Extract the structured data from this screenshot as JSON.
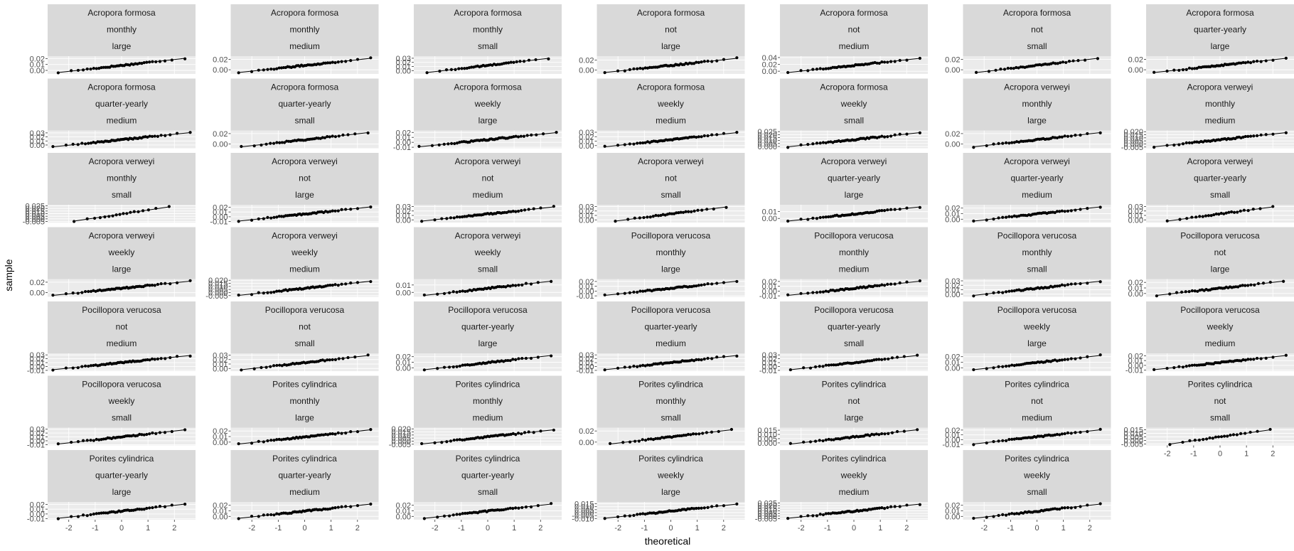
{
  "chart_data": {
    "type": "scatter",
    "subtype": "qq-plot-facet-grid",
    "title": "",
    "xlabel": "theoretical",
    "ylabel": "sample",
    "grid": true,
    "legend": "none",
    "colors": {
      "strip_bg": "#d9d9d9",
      "panel_bg": "#ebebeb",
      "grid": "#ffffff",
      "point": "#000000",
      "line": "#000000",
      "tick_text": "#4d4d4d"
    },
    "x_ticks": [
      "-2",
      "-1",
      "0",
      "1",
      "2"
    ],
    "xlim": [
      -2.8,
      2.8
    ],
    "columns": 7,
    "panels": [
      {
        "strip": [
          "Acropora formosa",
          "monthly",
          "large"
        ],
        "y_ticks": [
          "0.00",
          "0.01",
          "0.02"
        ],
        "ylim": [
          -0.006,
          0.024
        ],
        "x_range": [
          -2.4,
          2.4
        ],
        "n": 40
      },
      {
        "strip": [
          "Acropora formosa",
          "monthly",
          "medium"
        ],
        "y_ticks": [
          "0.00",
          "0.02"
        ],
        "ylim": [
          -0.008,
          0.026
        ],
        "x_range": [
          -2.5,
          2.5
        ],
        "n": 45
      },
      {
        "strip": [
          "Acropora formosa",
          "monthly",
          "small"
        ],
        "y_ticks": [
          "0.00",
          "0.01",
          "0.02",
          "0.03"
        ],
        "ylim": [
          -0.008,
          0.035
        ],
        "x_range": [
          -2.3,
          2.3
        ],
        "n": 38
      },
      {
        "strip": [
          "Acropora formosa",
          "not",
          "large"
        ],
        "y_ticks": [
          "0.00",
          "0.02"
        ],
        "ylim": [
          -0.008,
          0.028
        ],
        "x_range": [
          -2.5,
          2.5
        ],
        "n": 45
      },
      {
        "strip": [
          "Acropora formosa",
          "not",
          "medium"
        ],
        "y_ticks": [
          "0.00",
          "0.02",
          "0.04"
        ],
        "ylim": [
          -0.008,
          0.044
        ],
        "x_range": [
          -2.5,
          2.5
        ],
        "n": 45
      },
      {
        "strip": [
          "Acropora formosa",
          "not",
          "small"
        ],
        "y_ticks": [
          "0.00",
          "0.02"
        ],
        "ylim": [
          -0.008,
          0.026
        ],
        "x_range": [
          -2.3,
          2.3
        ],
        "n": 38
      },
      {
        "strip": [
          "Acropora formosa",
          "quarter-yearly",
          "large"
        ],
        "y_ticks": [
          "0.00",
          "0.02"
        ],
        "ylim": [
          -0.008,
          0.026
        ],
        "x_range": [
          -2.5,
          2.5
        ],
        "n": 45
      },
      {
        "strip": [
          "Acropora formosa",
          "quarter-yearly",
          "medium"
        ],
        "y_ticks": [
          "0.00",
          "0.01",
          "0.02",
          "0.03"
        ],
        "ylim": [
          -0.008,
          0.036
        ],
        "x_range": [
          -2.6,
          2.6
        ],
        "n": 50
      },
      {
        "strip": [
          "Acropora formosa",
          "quarter-yearly",
          "small"
        ],
        "y_ticks": [
          "0.00",
          "0.02"
        ],
        "ylim": [
          -0.008,
          0.026
        ],
        "x_range": [
          -2.4,
          2.4
        ],
        "n": 40
      },
      {
        "strip": [
          "Acropora formosa",
          "weekly",
          "large"
        ],
        "y_ticks": [
          "-0.01",
          "0.00",
          "0.01",
          "0.02"
        ],
        "ylim": [
          -0.012,
          0.024
        ],
        "x_range": [
          -2.6,
          2.6
        ],
        "n": 50
      },
      {
        "strip": [
          "Acropora formosa",
          "weekly",
          "medium"
        ],
        "y_ticks": [
          "0.00",
          "0.01",
          "0.02",
          "0.03"
        ],
        "ylim": [
          -0.006,
          0.034
        ],
        "x_range": [
          -2.5,
          2.5
        ],
        "n": 45
      },
      {
        "strip": [
          "Acropora formosa",
          "weekly",
          "small"
        ],
        "y_ticks": [
          "0.000",
          "0.005",
          "0.010",
          "0.015",
          "0.020",
          "0.025"
        ],
        "ylim": [
          -0.003,
          0.027
        ],
        "x_range": [
          -2.5,
          2.5
        ],
        "n": 45
      },
      {
        "strip": [
          "Acropora verweyi",
          "monthly",
          "large"
        ],
        "y_ticks": [
          "0.00",
          "0.02"
        ],
        "ylim": [
          -0.008,
          0.026
        ],
        "x_range": [
          -2.4,
          2.4
        ],
        "n": 40
      },
      {
        "strip": [
          "Acropora verweyi",
          "monthly",
          "medium"
        ],
        "y_ticks": [
          "-0.005",
          "0.000",
          "0.005",
          "0.010",
          "0.015",
          "0.020"
        ],
        "ylim": [
          -0.007,
          0.022
        ],
        "x_range": [
          -2.5,
          2.5
        ],
        "n": 45
      },
      {
        "strip": [
          "Acropora verweyi",
          "monthly",
          "small"
        ],
        "y_ticks": [
          "-0.005",
          "0.000",
          "0.005",
          "0.010",
          "0.015",
          "0.020",
          "0.025"
        ],
        "ylim": [
          -0.007,
          0.027
        ],
        "x_range": [
          -1.8,
          1.8
        ],
        "n": 18
      },
      {
        "strip": [
          "Acropora verweyi",
          "not",
          "large"
        ],
        "y_ticks": [
          "-0.01",
          "0.00",
          "0.01",
          "0.02"
        ],
        "ylim": [
          -0.012,
          0.025
        ],
        "x_range": [
          -2.5,
          2.5
        ],
        "n": 45
      },
      {
        "strip": [
          "Acropora verweyi",
          "not",
          "medium"
        ],
        "y_ticks": [
          "0.00",
          "0.01",
          "0.02",
          "0.03"
        ],
        "ylim": [
          -0.006,
          0.034
        ],
        "x_range": [
          -2.5,
          2.5
        ],
        "n": 45
      },
      {
        "strip": [
          "Acropora verweyi",
          "not",
          "small"
        ],
        "y_ticks": [
          "0.00",
          "0.01",
          "0.02",
          "0.03"
        ],
        "ylim": [
          -0.006,
          0.034
        ],
        "x_range": [
          -2.1,
          2.1
        ],
        "n": 30
      },
      {
        "strip": [
          "Acropora verweyi",
          "quarter-yearly",
          "large"
        ],
        "y_ticks": [
          "0.00",
          "0.01"
        ],
        "ylim": [
          -0.006,
          0.02
        ],
        "x_range": [
          -2.5,
          2.5
        ],
        "n": 45
      },
      {
        "strip": [
          "Acropora verweyi",
          "quarter-yearly",
          "medium"
        ],
        "y_ticks": [
          "0.00",
          "0.01",
          "0.02"
        ],
        "ylim": [
          -0.006,
          0.026
        ],
        "x_range": [
          -2.4,
          2.4
        ],
        "n": 40
      },
      {
        "strip": [
          "Acropora verweyi",
          "quarter-yearly",
          "small"
        ],
        "y_ticks": [
          "0.00",
          "0.01",
          "0.02",
          "0.03"
        ],
        "ylim": [
          -0.006,
          0.034
        ],
        "x_range": [
          -2.0,
          2.0
        ],
        "n": 26
      },
      {
        "strip": [
          "Acropora verweyi",
          "weekly",
          "large"
        ],
        "y_ticks": [
          "0.00",
          "0.02"
        ],
        "ylim": [
          -0.008,
          0.026
        ],
        "x_range": [
          -2.6,
          2.6
        ],
        "n": 50
      },
      {
        "strip": [
          "Acropora verweyi",
          "weekly",
          "medium"
        ],
        "y_ticks": [
          "-0.005",
          "0.000",
          "0.005",
          "0.010",
          "0.015",
          "0.020"
        ],
        "ylim": [
          -0.007,
          0.022
        ],
        "x_range": [
          -2.5,
          2.5
        ],
        "n": 45
      },
      {
        "strip": [
          "Acropora verweyi",
          "weekly",
          "small"
        ],
        "y_ticks": [
          "0.00",
          "0.01"
        ],
        "ylim": [
          -0.006,
          0.018
        ],
        "x_range": [
          -2.4,
          2.4
        ],
        "n": 40
      },
      {
        "strip": [
          "Pocillopora verucosa",
          "monthly",
          "large"
        ],
        "y_ticks": [
          "-0.01",
          "0.00",
          "0.01",
          "0.02"
        ],
        "ylim": [
          -0.012,
          0.025
        ],
        "x_range": [
          -2.5,
          2.5
        ],
        "n": 45
      },
      {
        "strip": [
          "Pocillopora verucosa",
          "monthly",
          "medium"
        ],
        "y_ticks": [
          "-0.01",
          "0.00",
          "0.01",
          "0.02"
        ],
        "ylim": [
          -0.012,
          0.025
        ],
        "x_range": [
          -2.5,
          2.5
        ],
        "n": 45
      },
      {
        "strip": [
          "Pocillopora verucosa",
          "monthly",
          "small"
        ],
        "y_ticks": [
          "0.00",
          "0.01",
          "0.02",
          "0.03"
        ],
        "ylim": [
          -0.006,
          0.034
        ],
        "x_range": [
          -2.4,
          2.4
        ],
        "n": 40
      },
      {
        "strip": [
          "Pocillopora verucosa",
          "not",
          "large"
        ],
        "y_ticks": [
          "0.00",
          "0.01",
          "0.02"
        ],
        "ylim": [
          -0.006,
          0.026
        ],
        "x_range": [
          -2.4,
          2.4
        ],
        "n": 40
      },
      {
        "strip": [
          "Pocillopora verucosa",
          "not",
          "medium"
        ],
        "y_ticks": [
          "-0.01",
          "0.00",
          "0.01",
          "0.02",
          "0.03"
        ],
        "ylim": [
          -0.012,
          0.034
        ],
        "x_range": [
          -2.6,
          2.6
        ],
        "n": 50
      },
      {
        "strip": [
          "Pocillopora verucosa",
          "not",
          "small"
        ],
        "y_ticks": [
          "0.00",
          "0.01",
          "0.02",
          "0.03"
        ],
        "ylim": [
          -0.006,
          0.034
        ],
        "x_range": [
          -2.4,
          2.4
        ],
        "n": 40
      },
      {
        "strip": [
          "Pocillopora verucosa",
          "quarter-yearly",
          "large"
        ],
        "y_ticks": [
          "0.00",
          "0.01",
          "0.02"
        ],
        "ylim": [
          -0.006,
          0.026
        ],
        "x_range": [
          -2.4,
          2.4
        ],
        "n": 40
      },
      {
        "strip": [
          "Pocillopora verucosa",
          "quarter-yearly",
          "medium"
        ],
        "y_ticks": [
          "-0.01",
          "0.00",
          "0.01",
          "0.02",
          "0.03"
        ],
        "ylim": [
          -0.012,
          0.034
        ],
        "x_range": [
          -2.5,
          2.5
        ],
        "n": 45
      },
      {
        "strip": [
          "Pocillopora verucosa",
          "quarter-yearly",
          "small"
        ],
        "y_ticks": [
          "-0.01",
          "0.00",
          "0.01",
          "0.02",
          "0.03"
        ],
        "ylim": [
          -0.012,
          0.034
        ],
        "x_range": [
          -2.4,
          2.4
        ],
        "n": 40
      },
      {
        "strip": [
          "Pocillopora verucosa",
          "weekly",
          "large"
        ],
        "y_ticks": [
          "0.00",
          "0.01",
          "0.02"
        ],
        "ylim": [
          -0.006,
          0.026
        ],
        "x_range": [
          -2.4,
          2.4
        ],
        "n": 40
      },
      {
        "strip": [
          "Pocillopora verucosa",
          "weekly",
          "medium"
        ],
        "y_ticks": [
          "-0.01",
          "0.00",
          "0.01",
          "0.02"
        ],
        "ylim": [
          -0.012,
          0.025
        ],
        "x_range": [
          -2.5,
          2.5
        ],
        "n": 45
      },
      {
        "strip": [
          "Pocillopora verucosa",
          "weekly",
          "small"
        ],
        "y_ticks": [
          "-0.01",
          "0.00",
          "0.01",
          "0.02",
          "0.03"
        ],
        "ylim": [
          -0.012,
          0.034
        ],
        "x_range": [
          -2.4,
          2.4
        ],
        "n": 40
      },
      {
        "strip": [
          "Porites cylindrica",
          "monthly",
          "large"
        ],
        "y_ticks": [
          "0.00",
          "0.01",
          "0.02"
        ],
        "ylim": [
          -0.006,
          0.026
        ],
        "x_range": [
          -2.5,
          2.5
        ],
        "n": 45
      },
      {
        "strip": [
          "Porites cylindrica",
          "monthly",
          "medium"
        ],
        "y_ticks": [
          "-0.005",
          "0.000",
          "0.005",
          "0.010",
          "0.015",
          "0.020"
        ],
        "ylim": [
          -0.007,
          0.022
        ],
        "x_range": [
          -2.5,
          2.5
        ],
        "n": 45
      },
      {
        "strip": [
          "Porites cylindrica",
          "monthly",
          "small"
        ],
        "y_ticks": [
          "0.00",
          "0.02"
        ],
        "ylim": [
          -0.006,
          0.026
        ],
        "x_range": [
          -2.3,
          2.3
        ],
        "n": 36
      },
      {
        "strip": [
          "Porites cylindrica",
          "not",
          "large"
        ],
        "y_ticks": [
          "0.000",
          "0.005",
          "0.010",
          "0.015"
        ],
        "ylim": [
          -0.003,
          0.018
        ],
        "x_range": [
          -2.4,
          2.4
        ],
        "n": 40
      },
      {
        "strip": [
          "Porites cylindrica",
          "not",
          "medium"
        ],
        "y_ticks": [
          "-0.01",
          "0.00",
          "0.01",
          "0.02"
        ],
        "ylim": [
          -0.012,
          0.025
        ],
        "x_range": [
          -2.4,
          2.4
        ],
        "n": 40
      },
      {
        "strip": [
          "Porites cylindrica",
          "not",
          "small"
        ],
        "y_ticks": [
          "-0.005",
          "0.000",
          "0.005",
          "0.010",
          "0.015"
        ],
        "ylim": [
          -0.007,
          0.018
        ],
        "x_range": [
          -1.9,
          1.9
        ],
        "n": 22
      },
      {
        "strip": [
          "Porites cylindrica",
          "quarter-yearly",
          "large"
        ],
        "y_ticks": [
          "-0.01",
          "0.00",
          "0.01",
          "0.02"
        ],
        "ylim": [
          -0.012,
          0.025
        ],
        "x_range": [
          -2.4,
          2.4
        ],
        "n": 40
      },
      {
        "strip": [
          "Porites cylindrica",
          "quarter-yearly",
          "medium"
        ],
        "y_ticks": [
          "0.00",
          "0.01",
          "0.02"
        ],
        "ylim": [
          -0.006,
          0.026
        ],
        "x_range": [
          -2.5,
          2.5
        ],
        "n": 45
      },
      {
        "strip": [
          "Porites cylindrica",
          "quarter-yearly",
          "small"
        ],
        "y_ticks": [
          "0.00",
          "0.01",
          "0.02"
        ],
        "ylim": [
          -0.006,
          0.026
        ],
        "x_range": [
          -2.4,
          2.4
        ],
        "n": 40
      },
      {
        "strip": [
          "Porites cylindrica",
          "weekly",
          "large"
        ],
        "y_ticks": [
          "-0.010",
          "-0.005",
          "0.000",
          "0.005",
          "0.010",
          "0.015"
        ],
        "ylim": [
          -0.012,
          0.018
        ],
        "x_range": [
          -2.5,
          2.5
        ],
        "n": 45
      },
      {
        "strip": [
          "Porites cylindrica",
          "weekly",
          "medium"
        ],
        "y_ticks": [
          "-0.005",
          "0.000",
          "0.005",
          "0.010",
          "0.015",
          "0.020",
          "0.025"
        ],
        "ylim": [
          -0.007,
          0.027
        ],
        "x_range": [
          -2.5,
          2.5
        ],
        "n": 45
      },
      {
        "strip": [
          "Porites cylindrica",
          "weekly",
          "small"
        ],
        "y_ticks": [
          "0.00",
          "0.01",
          "0.02"
        ],
        "ylim": [
          -0.006,
          0.026
        ],
        "x_range": [
          -2.4,
          2.4
        ],
        "n": 40
      }
    ]
  }
}
